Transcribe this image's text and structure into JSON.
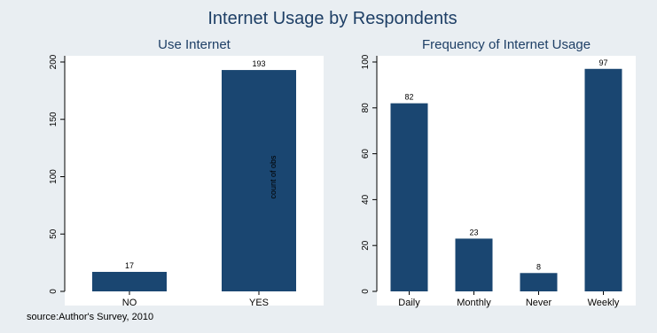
{
  "title": "Internet Usage by Respondents",
  "source": "source:Author's Survey, 2010",
  "chart_data": [
    {
      "type": "bar",
      "title": "Use Internet",
      "categories": [
        "NO",
        "YES"
      ],
      "values": [
        17,
        193
      ],
      "data_labels": [
        "17",
        "193"
      ],
      "ylabel": "count of obs",
      "ylim": [
        0,
        210
      ],
      "yticks": [
        0,
        50,
        100,
        150,
        200
      ],
      "ytick_labels": [
        "0",
        "50",
        "100",
        "150",
        "200"
      ],
      "grid": false
    },
    {
      "type": "bar",
      "title": "Frequency of Internet Usage",
      "categories": [
        "Daily",
        "Monthly",
        "Never",
        "Weekly"
      ],
      "values": [
        82,
        23,
        8,
        97
      ],
      "data_labels": [
        "82",
        "23",
        "8",
        "97"
      ],
      "ylabel": "",
      "ylim": [
        0,
        104
      ],
      "yticks": [
        0,
        20,
        40,
        60,
        80,
        100
      ],
      "ytick_labels": [
        "0",
        "20",
        "40",
        "60",
        "80",
        "100"
      ],
      "grid": false
    }
  ]
}
